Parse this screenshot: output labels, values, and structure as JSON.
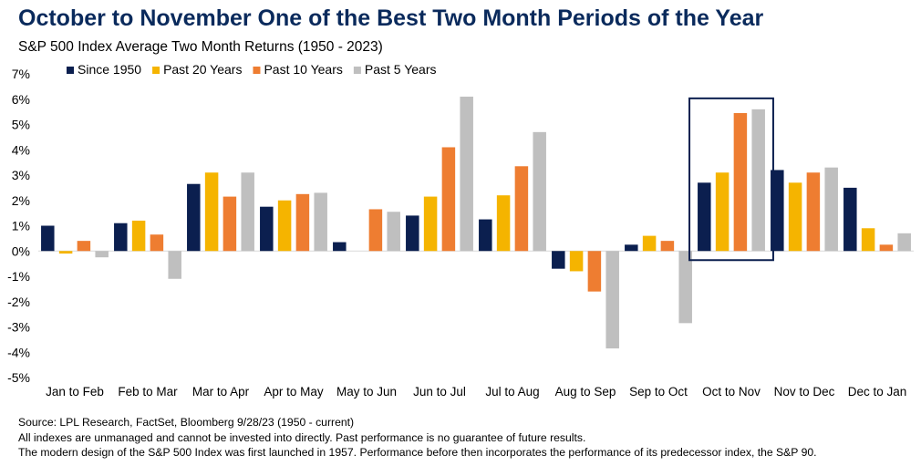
{
  "title": "October to November One of the Best Two Month Periods of the Year",
  "subtitle": "S&P 500 Index Average Two Month Returns (1950 - 2023)",
  "chart_data": {
    "type": "bar",
    "categories": [
      "Jan to Feb",
      "Feb to Mar",
      "Mar to Apr",
      "Apr to May",
      "May to Jun",
      "Jun to Jul",
      "Jul to Aug",
      "Aug to Sep",
      "Sep to Oct",
      "Oct to Nov",
      "Nov to Dec",
      "Dec to Jan"
    ],
    "series": [
      {
        "name": "Since 1950",
        "color": "#0b1f4f",
        "values": [
          1.0,
          1.1,
          2.65,
          1.75,
          0.35,
          1.4,
          1.25,
          -0.7,
          0.25,
          2.7,
          3.2,
          2.5
        ]
      },
      {
        "name": "Past 20 Years",
        "color": "#f5b400",
        "values": [
          -0.1,
          1.2,
          3.1,
          2.0,
          0.0,
          2.15,
          2.2,
          -0.8,
          0.6,
          3.1,
          2.7,
          0.9
        ]
      },
      {
        "name": "Past 10 Years",
        "color": "#ee7d31",
        "values": [
          0.4,
          0.65,
          2.15,
          2.25,
          1.65,
          4.1,
          3.35,
          -1.6,
          0.4,
          5.45,
          3.1,
          0.25
        ]
      },
      {
        "name": "Past 5 Years",
        "color": "#bfbfbf",
        "values": [
          -0.25,
          -1.1,
          3.1,
          2.3,
          1.55,
          6.1,
          4.7,
          -3.85,
          -2.85,
          5.6,
          3.3,
          0.7
        ]
      }
    ],
    "ylim": [
      -5,
      7
    ],
    "ytick_labels": [
      "7%",
      "6%",
      "5%",
      "4%",
      "3%",
      "2%",
      "1%",
      "0%",
      "-1%",
      "-2%",
      "-3%",
      "-4%",
      "-5%"
    ],
    "legend": "top-left",
    "highlight_category": "Oct to Nov",
    "grid": false
  },
  "footer": {
    "source": "Source: LPL Research, FactSet, Bloomberg 9/28/23  (1950 - current)",
    "disclaimer1": "All indexes are unmanaged and cannot be invested into directly. Past performance is no guarantee of future results.",
    "disclaimer2": "The modern design of the S&P 500 Index was first launched in 1957. Performance before then incorporates the performance of its  predecessor index, the S&P 90."
  }
}
